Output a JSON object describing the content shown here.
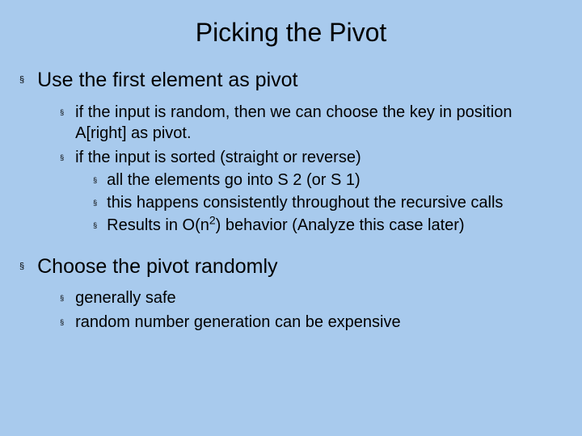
{
  "colors": {
    "background": "#a8caed",
    "text": "#000000"
  },
  "typography": {
    "font_family": "Arial",
    "title_fontsize": 32,
    "lvl1_fontsize": 25,
    "lvl2_fontsize": 20,
    "lvl3_fontsize": 20,
    "bullet_glyph": "§"
  },
  "title": "Picking the Pivot",
  "bullets": [
    {
      "text": "Use the first element as pivot",
      "children": [
        {
          "text": "if the input is random, then we can choose the key in position A[right] as pivot."
        },
        {
          "text": "if the input is sorted (straight or reverse)",
          "children": [
            {
              "text": "all the elements go into S 2 (or S 1)"
            },
            {
              "text": "this happens consistently throughout the recursive calls"
            },
            {
              "text_html": "Results in O(n<sup>2</sup>) behavior (Analyze this case later)",
              "text": "Results in O(n 2) behavior (Analyze this case later)"
            }
          ]
        }
      ]
    },
    {
      "text": "Choose the pivot randomly",
      "children": [
        {
          "text": "generally safe"
        },
        {
          "text": "random number generation can be expensive"
        }
      ]
    }
  ]
}
